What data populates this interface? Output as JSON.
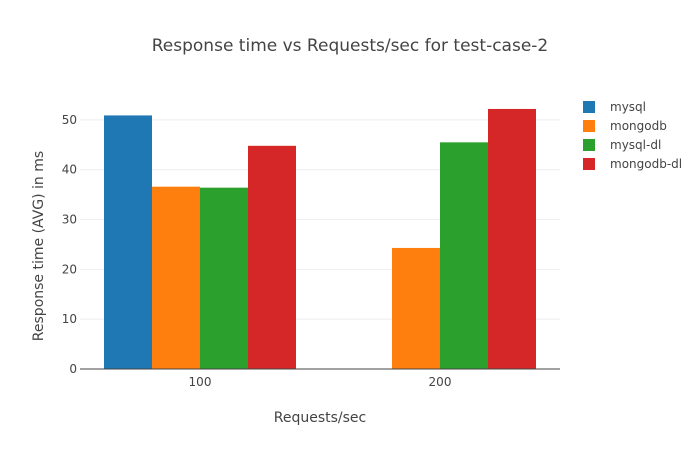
{
  "chart_data": {
    "type": "bar",
    "title": "Response time vs Requests/sec for test-case-2",
    "xlabel": "Requests/sec",
    "ylabel": "Response time (AVG) in ms",
    "categories": [
      "100",
      "200"
    ],
    "ylim": [
      0,
      55
    ],
    "yticks": [
      0,
      10,
      20,
      30,
      40,
      50
    ],
    "grid": true,
    "legend_position": "top-right",
    "series": [
      {
        "name": "mysql",
        "color": "#1f77b4",
        "values": [
          50.9,
          null
        ]
      },
      {
        "name": "mongodb",
        "color": "#ff7f0e",
        "values": [
          36.6,
          24.3
        ]
      },
      {
        "name": "mysql-dl",
        "color": "#2ca02c",
        "values": [
          36.4,
          45.5
        ]
      },
      {
        "name": "mongodb-dl",
        "color": "#d62728",
        "values": [
          44.8,
          52.2
        ]
      }
    ]
  }
}
